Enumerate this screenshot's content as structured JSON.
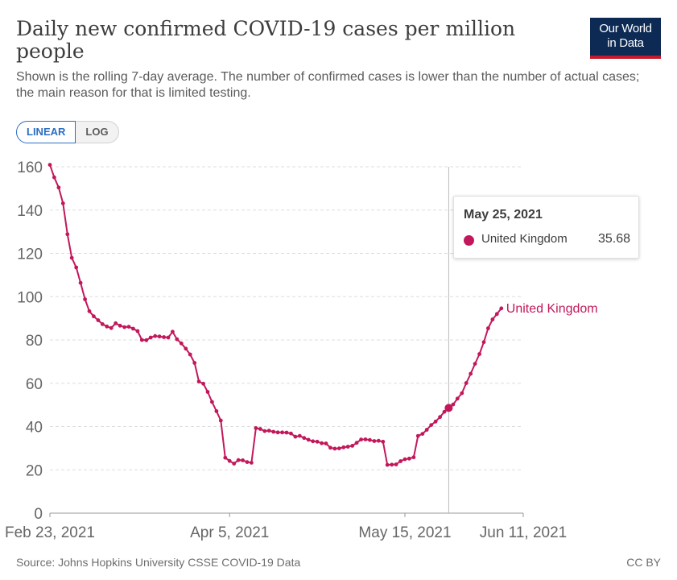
{
  "header": {
    "title": "Daily new confirmed COVID-19 cases per million people",
    "subtitle": "Shown is the rolling 7-day average. The number of confirmed cases is lower than the number of actual cases; the main reason for that is limited testing.",
    "logo_line1": "Our World",
    "logo_line2": "in Data"
  },
  "controls": {
    "linear_label": "LINEAR",
    "log_label": "LOG"
  },
  "tooltip": {
    "date": "May 25, 2021",
    "series": "United Kingdom",
    "value": "35.68"
  },
  "footer": {
    "source": "Source: Johns Hopkins University CSSE COVID-19 Data",
    "license": "CC BY"
  },
  "colors": {
    "series": "#c2185b",
    "grid": "#dddddd",
    "logo_bg": "#0d2a55",
    "logo_accent": "#c3192d",
    "toggle_active": "#2c6ec2"
  },
  "chart_data": {
    "type": "line",
    "title": "Daily new confirmed COVID-19 cases per million people",
    "xlabel": "",
    "ylabel": "",
    "x_start": "2021-02-23",
    "x_end": "2021-06-11",
    "x_ticks": [
      "Feb 23, 2021",
      "Apr 5, 2021",
      "May 15, 2021",
      "Jun 11, 2021"
    ],
    "y_ticks": [
      0,
      20,
      40,
      60,
      80,
      100,
      120,
      140,
      160
    ],
    "ylim": [
      0,
      160
    ],
    "grid": true,
    "scale": "linear",
    "hover_date": "2021-05-25",
    "series": [
      {
        "name": "United Kingdom",
        "color": "#c2185b",
        "values": [
          160.9,
          155.1,
          150.4,
          143.1,
          128.8,
          117.9,
          113.5,
          106.4,
          98.8,
          93.3,
          90.9,
          89.1,
          87.3,
          86.2,
          85.5,
          87.7,
          86.6,
          85.9,
          86.1,
          85.2,
          84.1,
          80.0,
          79.9,
          81.1,
          81.8,
          81.6,
          81.3,
          81.1,
          83.8,
          80.3,
          78.4,
          76.0,
          73.3,
          69.4,
          60.8,
          59.8,
          56.0,
          51.4,
          47.1,
          42.8,
          25.6,
          24.1,
          22.9,
          24.5,
          24.4,
          23.6,
          23.3,
          39.3,
          38.9,
          37.9,
          38.1,
          37.6,
          37.3,
          37.3,
          37.2,
          36.8,
          35.3,
          35.7,
          34.7,
          33.9,
          33.2,
          33.0,
          32.3,
          32.2,
          30.2,
          29.8,
          29.9,
          30.4,
          30.7,
          31.1,
          32.5,
          34.0,
          34.1,
          33.8,
          33.3,
          33.4,
          33.0,
          22.3,
          22.4,
          22.5,
          24.0,
          24.9,
          25.2,
          25.8,
          35.68,
          36.6,
          38.5,
          40.7,
          42.3,
          44.4,
          46.8,
          48.6,
          50.2,
          52.9,
          55.4,
          60.1,
          64.4,
          69.0,
          73.5,
          79.0,
          85.4,
          89.5,
          92.0,
          94.6
        ]
      }
    ]
  }
}
